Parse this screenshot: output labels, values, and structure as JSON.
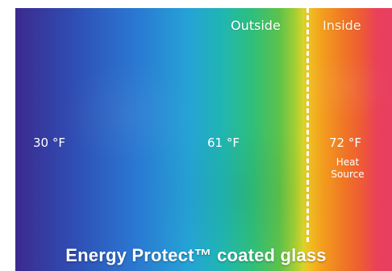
{
  "labels": {
    "outside": "Outside",
    "inside": "Inside"
  },
  "temperatures": {
    "left": "30 °F",
    "middle": "61 °F",
    "right": "72 °F"
  },
  "heat_source": {
    "line1": "Heat",
    "line2": "Source"
  },
  "title": "Energy Protect™ coated glass",
  "colors": {
    "cold": "#3b2a8f",
    "mid": "#20b6b2",
    "warm": "#f39a1e",
    "hot": "#e83e62",
    "divider": "#ffffff"
  }
}
